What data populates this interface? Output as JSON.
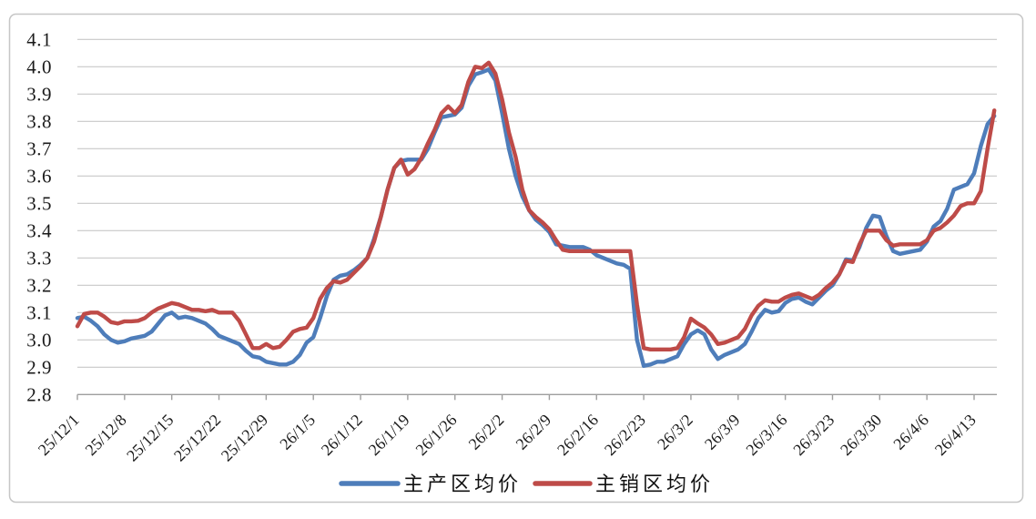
{
  "chart_data": {
    "type": "line",
    "title": "",
    "ylabel": "",
    "xlabel": "",
    "ylim": [
      2.8,
      4.1
    ],
    "y_tick_step": 0.1,
    "y_tick_labels": [
      "2.8",
      "2.9",
      "3.0",
      "3.1",
      "3.2",
      "3.3",
      "3.4",
      "3.5",
      "3.6",
      "3.7",
      "3.8",
      "3.9",
      "4.0",
      "4.1"
    ],
    "x_tick_labels": [
      "25/12/1",
      "25/12/8",
      "25/12/15",
      "25/12/22",
      "25/12/29",
      "26/1/5",
      "26/1/12",
      "26/1/19",
      "26/1/26",
      "26/2/2",
      "26/2/9",
      "26/2/16",
      "26/2/23",
      "26/3/2",
      "26/3/9",
      "26/3/16",
      "26/3/23",
      "26/3/30",
      "26/4/6",
      "26/4/13"
    ],
    "points_per_label_interval": 7,
    "grid": true,
    "legend_position": "bottom",
    "colors": {
      "grid": "#c8c8c8",
      "axis": "#9e9e9e",
      "text": "#1a1a1a",
      "frame_border": "#c6c6c6"
    },
    "series": [
      {
        "name": "主产区均价",
        "color": "#4E7DBA",
        "values": [
          3.08,
          3.085,
          3.07,
          3.05,
          3.02,
          3.0,
          2.99,
          2.995,
          3.005,
          3.01,
          3.015,
          3.03,
          3.06,
          3.09,
          3.1,
          3.08,
          3.085,
          3.08,
          3.07,
          3.06,
          3.04,
          3.015,
          3.005,
          2.995,
          2.985,
          2.96,
          2.94,
          2.935,
          2.92,
          2.915,
          2.91,
          2.91,
          2.92,
          2.945,
          2.99,
          3.01,
          3.08,
          3.16,
          3.22,
          3.235,
          3.24,
          3.255,
          3.275,
          3.3,
          3.37,
          3.45,
          3.55,
          3.63,
          3.655,
          3.66,
          3.66,
          3.66,
          3.7,
          3.76,
          3.815,
          3.82,
          3.825,
          3.85,
          3.93,
          3.972,
          3.98,
          3.99,
          3.95,
          3.83,
          3.7,
          3.6,
          3.525,
          3.475,
          3.44,
          3.42,
          3.395,
          3.35,
          3.345,
          3.34,
          3.34,
          3.34,
          3.33,
          3.31,
          3.3,
          3.29,
          3.28,
          3.275,
          3.26,
          3.0,
          2.905,
          2.91,
          2.92,
          2.92,
          2.93,
          2.94,
          2.985,
          3.02,
          3.035,
          3.02,
          2.965,
          2.93,
          2.945,
          2.955,
          2.965,
          2.985,
          3.03,
          3.08,
          3.11,
          3.1,
          3.105,
          3.135,
          3.15,
          3.155,
          3.14,
          3.13,
          3.155,
          3.18,
          3.2,
          3.24,
          3.295,
          3.29,
          3.34,
          3.41,
          3.455,
          3.45,
          3.38,
          3.325,
          3.315,
          3.32,
          3.325,
          3.33,
          3.36,
          3.415,
          3.435,
          3.48,
          3.55,
          3.56,
          3.57,
          3.61,
          3.71,
          3.79,
          3.82
        ]
      },
      {
        "name": "主销区均价",
        "color": "#BE4B48",
        "values": [
          3.05,
          3.095,
          3.1,
          3.1,
          3.085,
          3.065,
          3.06,
          3.068,
          3.068,
          3.07,
          3.08,
          3.1,
          3.115,
          3.125,
          3.135,
          3.13,
          3.12,
          3.11,
          3.11,
          3.105,
          3.11,
          3.1,
          3.1,
          3.1,
          3.07,
          3.02,
          2.97,
          2.97,
          2.985,
          2.97,
          2.975,
          3.0,
          3.03,
          3.04,
          3.045,
          3.08,
          3.15,
          3.19,
          3.215,
          3.21,
          3.22,
          3.245,
          3.27,
          3.3,
          3.36,
          3.45,
          3.55,
          3.63,
          3.66,
          3.605,
          3.625,
          3.665,
          3.72,
          3.77,
          3.83,
          3.855,
          3.83,
          3.86,
          3.945,
          4.0,
          3.995,
          4.015,
          3.975,
          3.88,
          3.76,
          3.67,
          3.55,
          3.475,
          3.45,
          3.43,
          3.405,
          3.365,
          3.33,
          3.325,
          3.325,
          3.325,
          3.325,
          3.325,
          3.325,
          3.325,
          3.325,
          3.325,
          3.325,
          3.13,
          2.97,
          2.965,
          2.965,
          2.965,
          2.965,
          2.97,
          3.01,
          3.078,
          3.06,
          3.045,
          3.02,
          2.985,
          2.99,
          3.0,
          3.01,
          3.04,
          3.09,
          3.125,
          3.145,
          3.14,
          3.14,
          3.155,
          3.165,
          3.17,
          3.16,
          3.15,
          3.165,
          3.19,
          3.21,
          3.24,
          3.29,
          3.285,
          3.35,
          3.4,
          3.4,
          3.4,
          3.365,
          3.345,
          3.35,
          3.35,
          3.35,
          3.35,
          3.365,
          3.4,
          3.41,
          3.43,
          3.455,
          3.49,
          3.5,
          3.5,
          3.545,
          3.7,
          3.84
        ]
      }
    ]
  }
}
